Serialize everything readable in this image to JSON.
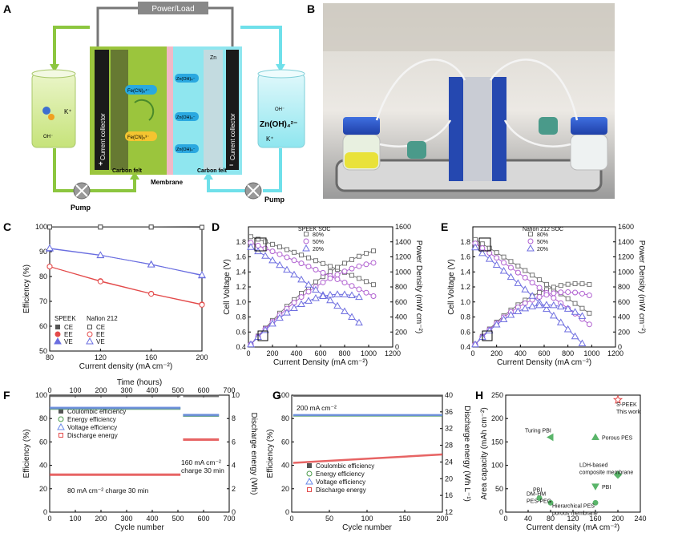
{
  "panel_letters": [
    "A",
    "B",
    "C",
    "D",
    "E",
    "F",
    "G",
    "H"
  ],
  "schematic": {
    "power_load": "Power/Load",
    "current_collector": "Current collector",
    "carbon_felt": "Carbon felt",
    "membrane": "Membrane",
    "pump": "Pump",
    "k_plus": "K⁺",
    "oh_minus": "OH⁻",
    "fe_red": "Fe(CN)₆⁴⁻",
    "fe_ox": "Fe(CN)₆³⁻",
    "zn_oh4": "Zn(OH)₄²⁻",
    "zn_oh": "Zn(OH)₄⁻",
    "zn": "Zn",
    "plus": "+",
    "minus": "−"
  },
  "photo": {
    "description_visible": false
  },
  "chart_data": [
    {
      "id": "C",
      "type": "line",
      "xlabel": "Current density (mA cm⁻²)",
      "ylabel": "Efficiency (%)",
      "xlim": [
        80,
        200
      ],
      "ylim": [
        50,
        100
      ],
      "xticks": [
        80,
        120,
        160,
        200
      ],
      "yticks": [
        50,
        60,
        70,
        80,
        90,
        100
      ],
      "x": [
        80,
        120,
        160,
        200
      ],
      "legend_titles": [
        "SPEEK",
        "Nafion 212"
      ],
      "legend_labels": [
        "CE",
        "EE",
        "VE"
      ],
      "series": [
        {
          "name": "CE",
          "group": "SPEEK",
          "values": [
            99.9,
            99.9,
            99.9,
            99.8
          ],
          "color": "#555555"
        },
        {
          "name": "EE",
          "group": "SPEEK",
          "values": [
            84.0,
            78.2,
            73.1,
            68.8
          ],
          "color": "#e34a4a"
        },
        {
          "name": "VE",
          "group": "SPEEK",
          "values": [
            91.2,
            88.5,
            84.9,
            80.4
          ],
          "color": "#6a6ee0"
        },
        {
          "name": "CE",
          "group": "Nafion 212",
          "values": [
            99.9,
            99.9,
            99.9,
            99.8
          ],
          "color": "#555555"
        },
        {
          "name": "EE",
          "group": "Nafion 212",
          "values": [
            84.0,
            78.0,
            73.0,
            68.6
          ],
          "color": "#e34a4a"
        },
        {
          "name": "VE",
          "group": "Nafion 212",
          "values": [
            91.4,
            88.6,
            84.8,
            80.6
          ],
          "color": "#6a6ee0"
        }
      ]
    },
    {
      "id": "D",
      "type": "line",
      "xlabel": "Current Density (mA cm⁻²)",
      "ylabel": "Cell Voltage (V)",
      "y2label": "Power Density (mW cm⁻²)",
      "xlim": [
        0,
        1200
      ],
      "ylim": [
        0.4,
        2.0
      ],
      "y2lim": [
        0,
        1600
      ],
      "xticks": [
        0,
        200,
        400,
        600,
        800,
        1000,
        1200
      ],
      "yticks": [
        0.4,
        0.6,
        0.8,
        1.0,
        1.2,
        1.4,
        1.6,
        1.8
      ],
      "y2ticks": [
        0,
        200,
        400,
        600,
        800,
        1000,
        1200,
        1400,
        1600
      ],
      "legend_title": "SPEEK SOC",
      "series": [
        {
          "name": "80%",
          "color": "#777777",
          "v0": 1.88,
          "slope": 0.00055,
          "xmax": 1080
        },
        {
          "name": "50%",
          "color": "#b060d0",
          "v0": 1.8,
          "slope": 0.00062,
          "xmax": 1080
        },
        {
          "name": "20%",
          "color": "#6f6fe0",
          "v0": 1.75,
          "slope": 0.00095,
          "xmax": 960
        }
      ]
    },
    {
      "id": "E",
      "type": "line",
      "xlabel": "Current Density (mA cm⁻²)",
      "ylabel": "Cell Voltage (V)",
      "y2label": "Power Density (mW cm⁻²)",
      "xlim": [
        0,
        1200
      ],
      "ylim": [
        0.4,
        2.0
      ],
      "y2lim": [
        0,
        1600
      ],
      "xticks": [
        0,
        200,
        400,
        600,
        800,
        1000,
        1200
      ],
      "yticks": [
        0.4,
        0.6,
        0.8,
        1.0,
        1.2,
        1.4,
        1.6,
        1.8
      ],
      "y2ticks": [
        0,
        200,
        400,
        600,
        800,
        1000,
        1200,
        1400,
        1600
      ],
      "legend_title": "Nafion 212 SOC",
      "series": [
        {
          "name": "80%",
          "color": "#777777",
          "v0": 1.85,
          "slope": 0.00095,
          "xmax": 1000
        },
        {
          "name": "50%",
          "color": "#b060d0",
          "v0": 1.8,
          "slope": 0.00105,
          "xmax": 980
        },
        {
          "name": "20%",
          "color": "#6f6fe0",
          "v0": 1.75,
          "slope": 0.00125,
          "xmax": 920
        }
      ]
    },
    {
      "id": "F",
      "type": "line",
      "xlabel": "Cycle number",
      "ylabel": "Efficiency (%)",
      "y2label": "Discharge energy (Wh)",
      "x2label": "Time (hours)",
      "xlim": [
        0,
        700
      ],
      "ylim": [
        0,
        100
      ],
      "y2lim": [
        0,
        10
      ],
      "x2lim": [
        0,
        700
      ],
      "xticks": [
        0,
        100,
        200,
        300,
        400,
        500,
        600,
        700
      ],
      "yticks": [
        0,
        20,
        40,
        60,
        80,
        100
      ],
      "y2ticks": [
        0,
        2,
        4,
        6,
        8,
        10
      ],
      "x2ticks": [
        0,
        100,
        200,
        300,
        400,
        500,
        600,
        700
      ],
      "series": [
        {
          "name": "Coulombic efficiency",
          "color": "#555555",
          "segments": [
            [
              0,
              510,
              99.5
            ],
            [
              520,
              660,
              99.3
            ]
          ]
        },
        {
          "name": "Energy efficiency",
          "color": "#4a9a4a",
          "segments": [
            [
              0,
              510,
              88.5
            ],
            [
              520,
              660,
              82.5
            ]
          ]
        },
        {
          "name": "Voltage efficiency",
          "color": "#6a8ae8",
          "segments": [
            [
              0,
              510,
              89.0
            ],
            [
              520,
              660,
              83.0
            ]
          ]
        },
        {
          "name": "Discharge energy",
          "color": "#e34a4a",
          "segments": [
            [
              0,
              510,
              3.2
            ],
            [
              520,
              660,
              6.2
            ]
          ],
          "axis": "y2"
        }
      ],
      "annotations": [
        "80 mA cm⁻² charge 30 min",
        "160 mA cm⁻²",
        "charge 30 min"
      ]
    },
    {
      "id": "G",
      "type": "line",
      "xlabel": "Cycle number",
      "ylabel": "Efficiency (%)",
      "y2label": "Discharge energy (Wh L⁻¹)",
      "xlim": [
        0,
        200
      ],
      "ylim": [
        0,
        100
      ],
      "y2lim": [
        12,
        40
      ],
      "xticks": [
        0,
        50,
        100,
        150,
        200
      ],
      "yticks": [
        0,
        20,
        40,
        60,
        80,
        100
      ],
      "y2ticks": [
        12,
        16,
        20,
        24,
        28,
        32,
        36,
        40
      ],
      "series": [
        {
          "name": "Coulombic efficiency",
          "color": "#555555",
          "level": 99.5,
          "axis": "y"
        },
        {
          "name": "Energy efficiency",
          "color": "#4a9a4a",
          "level": 82.5,
          "axis": "y"
        },
        {
          "name": "Voltage efficiency",
          "color": "#6a8ae8",
          "level": 83.0,
          "axis": "y"
        },
        {
          "name": "Discharge energy",
          "color": "#e34a4a",
          "level": 25.8,
          "axis": "y2"
        }
      ],
      "annotations": [
        "200 mA cm⁻²"
      ]
    },
    {
      "id": "H",
      "type": "scatter",
      "xlabel": "Current density (mA cm⁻²)",
      "ylabel": "Area capacity (mAh cm⁻²)",
      "xlim": [
        0,
        240
      ],
      "ylim": [
        0,
        250
      ],
      "xticks": [
        0,
        40,
        80,
        120,
        160,
        200,
        240
      ],
      "yticks": [
        0,
        50,
        100,
        150,
        200,
        250
      ],
      "points": [
        {
          "label": "S-PEEK\nThis work",
          "x": 200,
          "y": 240,
          "marker": "star",
          "color": "#e34a4a"
        },
        {
          "label": "Turing PBI",
          "x": 80,
          "y": 160,
          "marker": "tri-left",
          "color": "#5ab56a"
        },
        {
          "label": "Porous PES",
          "x": 160,
          "y": 160,
          "marker": "tri-up",
          "color": "#5ab56a"
        },
        {
          "label": "LDH-based\ncomposite membrane",
          "x": 200,
          "y": 80,
          "marker": "diamond",
          "color": "#5ab56a"
        },
        {
          "label": "PBI",
          "x": 160,
          "y": 55,
          "marker": "tri-down",
          "color": "#5ab56a"
        },
        {
          "label": "PBI",
          "x": 60,
          "y": 30,
          "marker": "circle",
          "color": "#5ab56a"
        },
        {
          "label": "DM-HM\nPES-PEG",
          "x": 80,
          "y": 20,
          "marker": "circle",
          "color": "#5ab56a"
        },
        {
          "label": "Hierarchical PES\nporous membrane",
          "x": 160,
          "y": 20,
          "marker": "circle",
          "color": "#5ab56a"
        }
      ]
    }
  ]
}
